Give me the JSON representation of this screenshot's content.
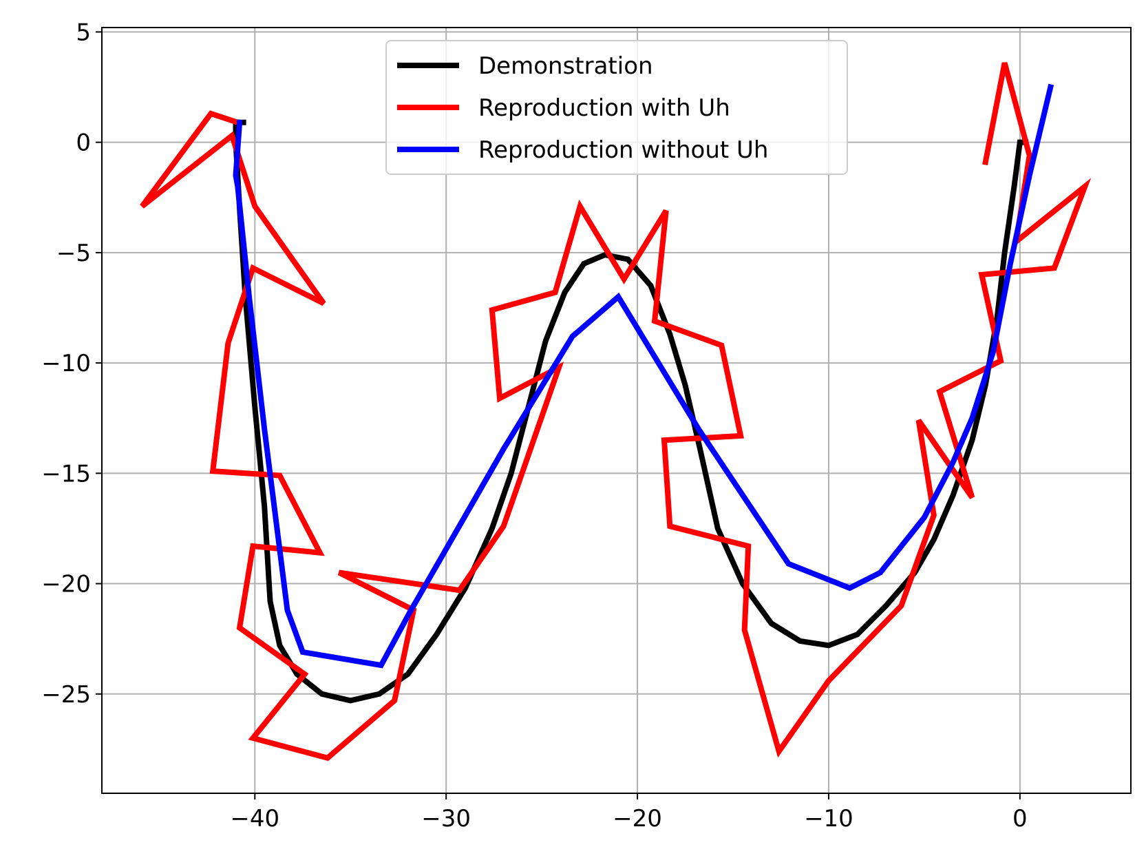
{
  "chart_data": {
    "type": "line",
    "title": "",
    "xlabel": "",
    "ylabel": "",
    "xlim": [
      -48,
      5.8
    ],
    "ylim": [
      -29.5,
      5.2
    ],
    "xticks": [
      -40,
      -30,
      -20,
      -10,
      0
    ],
    "yticks": [
      5,
      0,
      -5,
      -10,
      -15,
      -20,
      -25
    ],
    "xtick_labels": [
      "−40",
      "−30",
      "−20",
      "−10",
      "0"
    ],
    "ytick_labels": [
      "5",
      "0",
      "−5",
      "−10",
      "−15",
      "−20",
      "−25"
    ],
    "grid": true,
    "legend_position": "upper center",
    "series": [
      {
        "name": "Demonstration",
        "color": "#000000",
        "points": [
          [
            0.3,
            0
          ],
          [
            0,
            0
          ],
          [
            -0.3,
            -2
          ],
          [
            -0.8,
            -5
          ],
          [
            -1.2,
            -8
          ],
          [
            -1.8,
            -11
          ],
          [
            -2.5,
            -13.5
          ],
          [
            -3.5,
            -16
          ],
          [
            -4.5,
            -18
          ],
          [
            -5.5,
            -19.5
          ],
          [
            -7,
            -21
          ],
          [
            -8.5,
            -22.3
          ],
          [
            -10,
            -22.8
          ],
          [
            -11.5,
            -22.6
          ],
          [
            -13,
            -21.8
          ],
          [
            -14.5,
            -20
          ],
          [
            -15.8,
            -17.5
          ],
          [
            -16.7,
            -14
          ],
          [
            -17.5,
            -11
          ],
          [
            -18.3,
            -8.7
          ],
          [
            -19.3,
            -6.5
          ],
          [
            -20.5,
            -5.3
          ],
          [
            -21.7,
            -5.1
          ],
          [
            -22.8,
            -5.5
          ],
          [
            -23.8,
            -6.8
          ],
          [
            -24.8,
            -9
          ],
          [
            -25.7,
            -12
          ],
          [
            -26.6,
            -15
          ],
          [
            -27.6,
            -17.5
          ],
          [
            -29,
            -20.2
          ],
          [
            -30.5,
            -22.3
          ],
          [
            -32,
            -24.1
          ],
          [
            -33.5,
            -25
          ],
          [
            -35,
            -25.3
          ],
          [
            -36.5,
            -25
          ],
          [
            -37.8,
            -24.1
          ],
          [
            -38.7,
            -22.8
          ],
          [
            -39.2,
            -20.8
          ],
          [
            -39.5,
            -16.5
          ],
          [
            -40,
            -12
          ],
          [
            -40.5,
            -7
          ],
          [
            -40.8,
            -3
          ],
          [
            -41,
            0
          ],
          [
            -41,
            0.9
          ],
          [
            -40.6,
            0.9
          ]
        ]
      },
      {
        "name": "Reproduction with Uh",
        "color": "#ff0000",
        "points": [
          [
            -1.8,
            -0.9
          ],
          [
            -0.8,
            3.6
          ],
          [
            0.5,
            -0.6
          ],
          [
            -0.2,
            -4.5
          ],
          [
            3.4,
            -2
          ],
          [
            1.8,
            -5.7
          ],
          [
            -2,
            -6
          ],
          [
            -1,
            -9.9
          ],
          [
            -4.2,
            -11.3
          ],
          [
            -2.5,
            -16.1
          ],
          [
            -5.3,
            -12.6
          ],
          [
            -4.5,
            -16.9
          ],
          [
            -6.2,
            -21
          ],
          [
            -10,
            -24.4
          ],
          [
            -12.6,
            -27.6
          ],
          [
            -14.4,
            -22.1
          ],
          [
            -14.2,
            -18.3
          ],
          [
            -18.3,
            -17.4
          ],
          [
            -18.6,
            -13.5
          ],
          [
            -14.6,
            -13.3
          ],
          [
            -15.6,
            -9.2
          ],
          [
            -19.1,
            -8.1
          ],
          [
            -18.5,
            -3.1
          ],
          [
            -20.7,
            -6.2
          ],
          [
            -23,
            -2.9
          ],
          [
            -24.3,
            -6.8
          ],
          [
            -27.6,
            -7.6
          ],
          [
            -27.2,
            -11.6
          ],
          [
            -24.1,
            -10.2
          ],
          [
            -27,
            -17.4
          ],
          [
            -29.3,
            -20.3
          ],
          [
            -35.6,
            -19.5
          ],
          [
            -31.7,
            -21.2
          ],
          [
            -32.7,
            -25.3
          ],
          [
            -36.2,
            -27.9
          ],
          [
            -40.1,
            -27
          ],
          [
            -37.4,
            -24.1
          ],
          [
            -40.8,
            -22
          ],
          [
            -40.1,
            -18.3
          ],
          [
            -36.6,
            -18.6
          ],
          [
            -38.7,
            -15.1
          ],
          [
            -42.2,
            -14.9
          ],
          [
            -41.4,
            -9.1
          ],
          [
            -40.1,
            -5.7
          ],
          [
            -36.4,
            -7.3
          ],
          [
            -40,
            -2.9
          ],
          [
            -41.2,
            0.3
          ],
          [
            -45.9,
            -2.9
          ],
          [
            -42.3,
            1.3
          ],
          [
            -40.9,
            0.9
          ]
        ]
      },
      {
        "name": "Reproduction without Uh",
        "color": "#0000ff",
        "points": [
          [
            1.6,
            2.5
          ],
          [
            0.5,
            -1.5
          ],
          [
            -0.5,
            -5.5
          ],
          [
            -1.4,
            -9.5
          ],
          [
            -2.5,
            -12.5
          ],
          [
            -3.5,
            -14.5
          ],
          [
            -5,
            -17
          ],
          [
            -7.3,
            -19.5
          ],
          [
            -8.9,
            -20.2
          ],
          [
            -12.1,
            -19.1
          ],
          [
            -16.8,
            -13
          ],
          [
            -21,
            -7
          ],
          [
            -23.4,
            -8.8
          ],
          [
            -27,
            -13.9
          ],
          [
            -31.9,
            -21.3
          ],
          [
            -33.4,
            -23.7
          ],
          [
            -37.5,
            -23.1
          ],
          [
            -38.3,
            -21.2
          ],
          [
            -39.5,
            -13
          ],
          [
            -40.3,
            -7
          ],
          [
            -40.9,
            -2
          ],
          [
            -41,
            -1.5
          ],
          [
            -40.8,
            0.9
          ]
        ]
      }
    ]
  }
}
